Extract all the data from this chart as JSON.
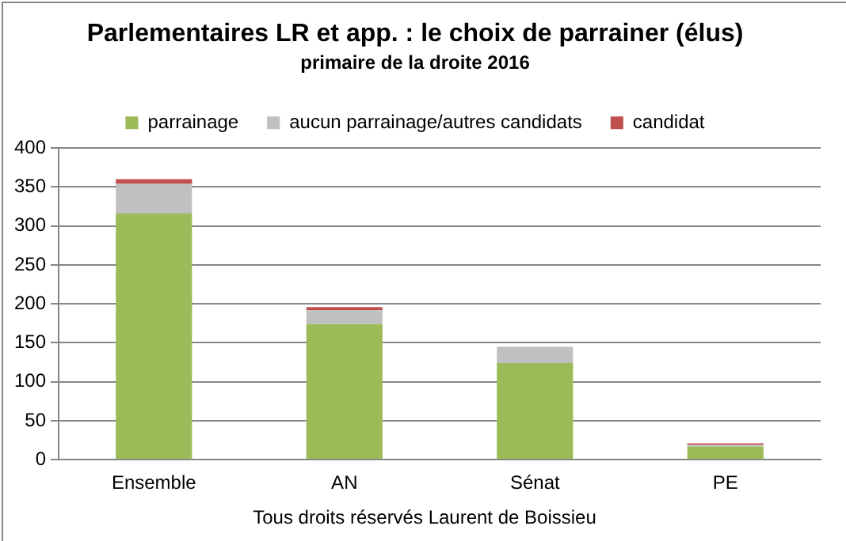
{
  "chart_data": {
    "type": "bar",
    "title": "Parlementaires LR et app. : le choix de parrainer (élus)",
    "subtitle": "primaire de la droite 2016",
    "categories": [
      "Ensemble",
      "AN",
      "Sénat",
      "PE"
    ],
    "series": [
      {
        "name": "parrainage",
        "color": "#9bbb59",
        "values": [
          316,
          174,
          124,
          17
        ]
      },
      {
        "name": "aucun parrainage/autres candidats",
        "color": "#c0c0c0",
        "values": [
          38,
          18,
          21,
          2
        ]
      },
      {
        "name": "candidat",
        "color": "#c0504d",
        "values": [
          6,
          4,
          0,
          2
        ]
      }
    ],
    "stacked": true,
    "ylim": [
      0,
      400
    ],
    "yticks": [
      0,
      50,
      100,
      150,
      200,
      250,
      300,
      350,
      400
    ],
    "grid": "y",
    "legend": "top",
    "annotations": [
      "Tous droits réservés Laurent de Boissieu"
    ]
  }
}
